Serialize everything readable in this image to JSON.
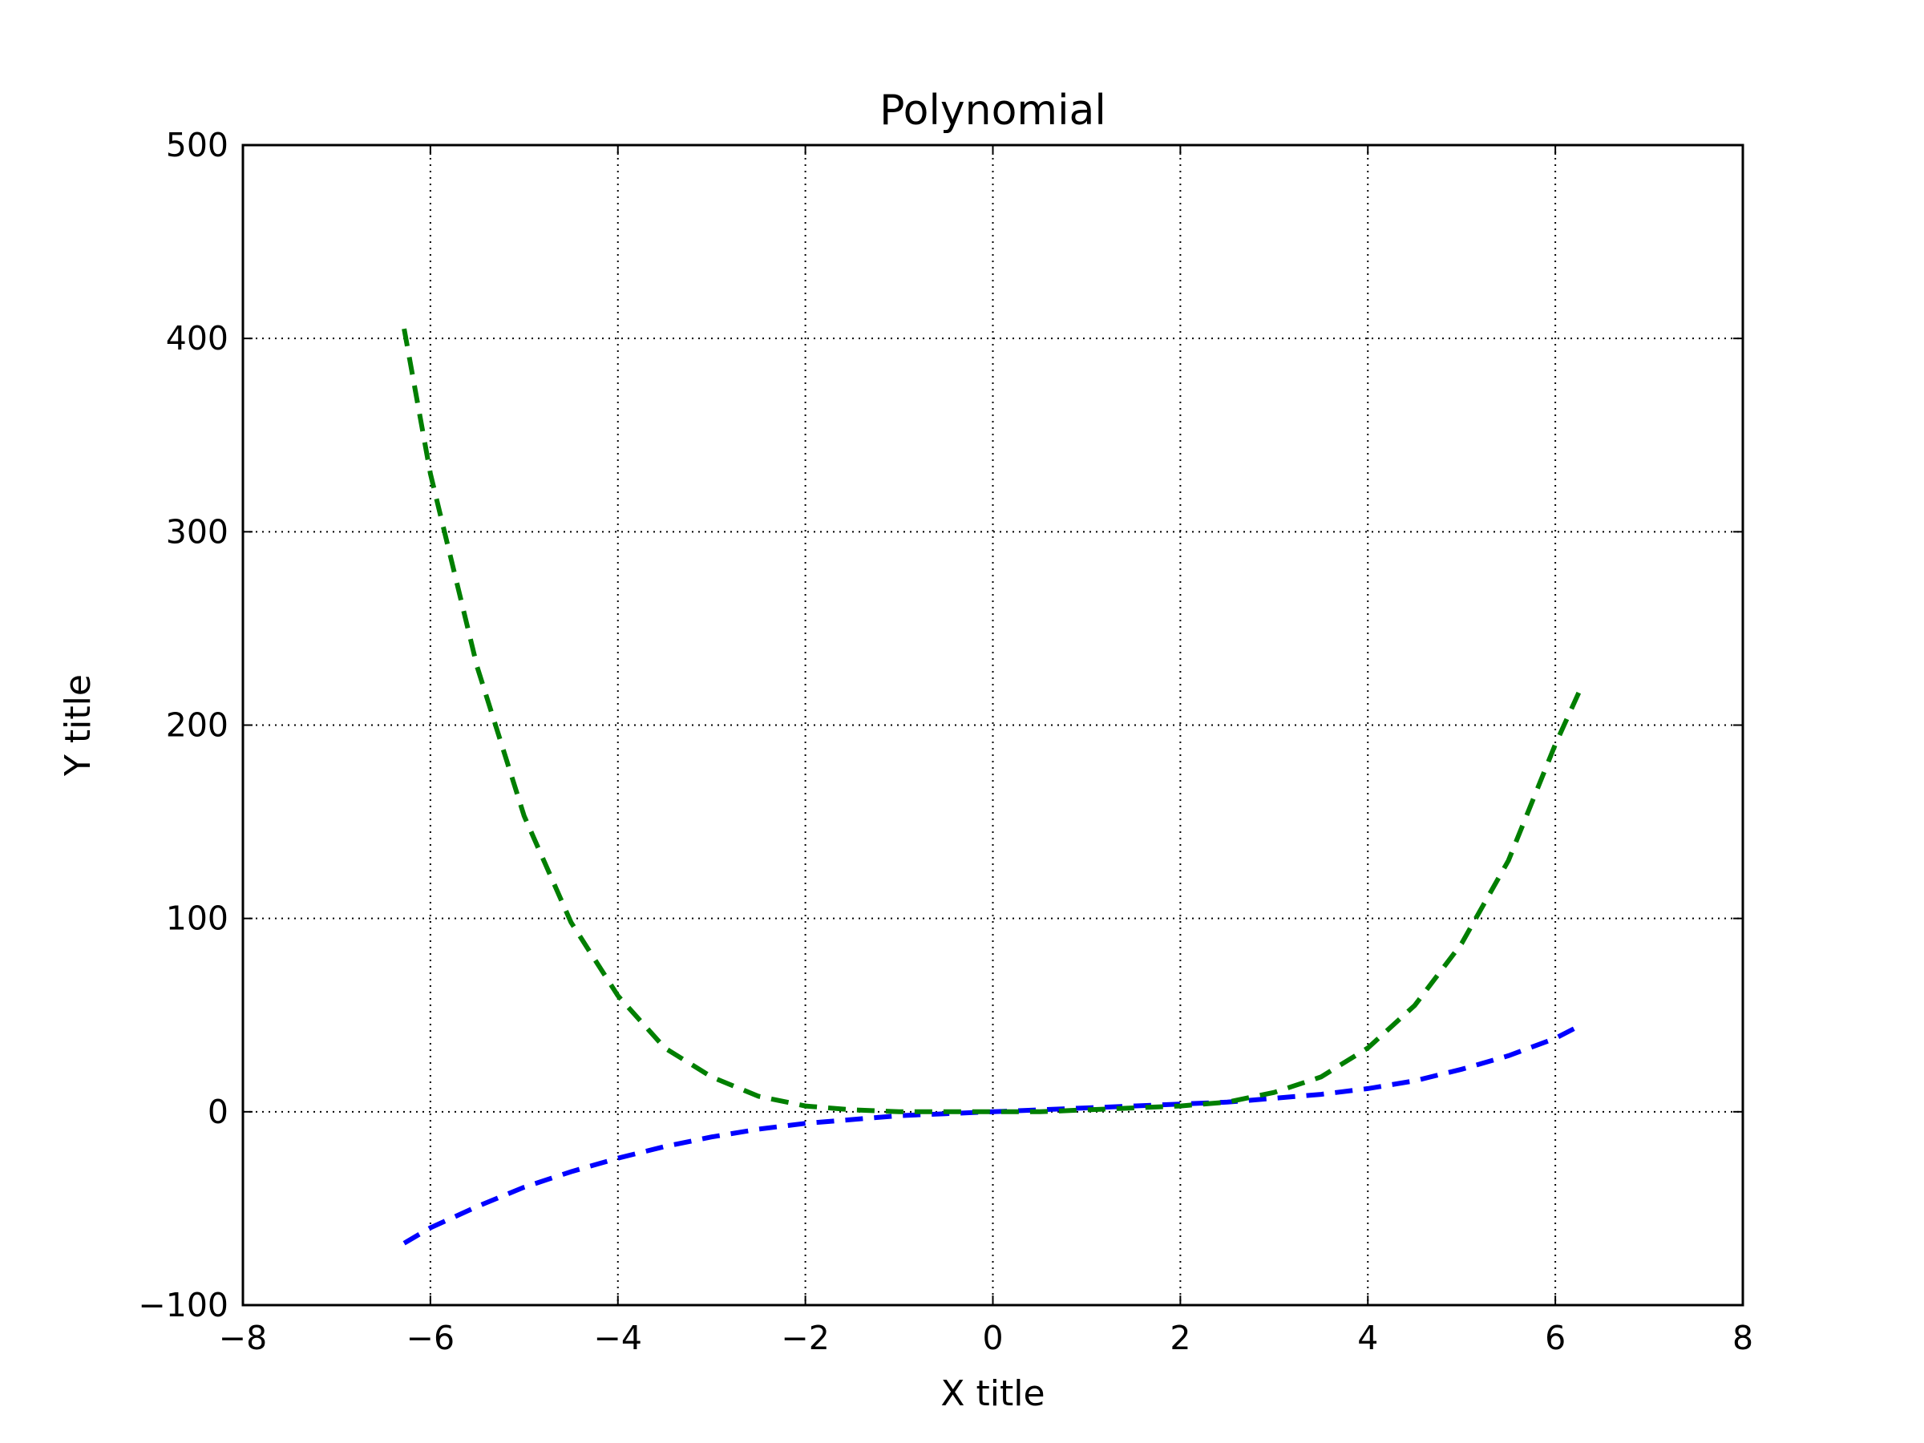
{
  "chart_data": {
    "type": "line",
    "title": "Polynomial",
    "xlabel": "X title",
    "ylabel": "Y title",
    "xlim": [
      -8,
      8
    ],
    "ylim": [
      -100,
      500
    ],
    "xticks": [
      -8,
      -6,
      -4,
      -2,
      0,
      2,
      4,
      6,
      8
    ],
    "xtick_labels": [
      "−8",
      "−6",
      "−4",
      "−2",
      "0",
      "2",
      "4",
      "6",
      "8"
    ],
    "yticks": [
      -100,
      0,
      100,
      200,
      300,
      400,
      500
    ],
    "ytick_labels": [
      "−100",
      "0",
      "100",
      "200",
      "300",
      "400",
      "500"
    ],
    "grid": true,
    "series": [
      {
        "color": "#0000ff",
        "style": "dashed",
        "x": [
          -6.28,
          -6.0,
          -5.5,
          -5.0,
          -4.5,
          -4.0,
          -3.5,
          -3.0,
          -2.5,
          -2.0,
          -1.5,
          -1.0,
          -0.5,
          0.0,
          0.5,
          1.0,
          1.5,
          2.0,
          2.5,
          3.0,
          3.5,
          4.0,
          4.5,
          5.0,
          5.5,
          6.0,
          6.28
        ],
        "y": [
          -68,
          -60,
          -49,
          -39,
          -31,
          -24,
          -18,
          -13,
          -9,
          -6,
          -4,
          -2,
          -1,
          0,
          1,
          2,
          3,
          4,
          5,
          7,
          9,
          12,
          16,
          22,
          29,
          38,
          45
        ]
      },
      {
        "color": "#007f00",
        "style": "dashed",
        "x": [
          -6.28,
          -6.0,
          -5.5,
          -5.0,
          -4.5,
          -4.0,
          -3.5,
          -3.0,
          -2.5,
          -2.0,
          -1.5,
          -1.0,
          -0.5,
          0.0,
          0.5,
          1.0,
          1.5,
          2.0,
          2.5,
          3.0,
          3.5,
          4.0,
          4.5,
          5.0,
          5.5,
          6.0,
          6.28
        ],
        "y": [
          405,
          330,
          230,
          153,
          98,
          60,
          33,
          18,
          8,
          3,
          1,
          0,
          0,
          0,
          0,
          1,
          2,
          3,
          5,
          10,
          18,
          33,
          55,
          87,
          130,
          190,
          220
        ]
      }
    ]
  }
}
